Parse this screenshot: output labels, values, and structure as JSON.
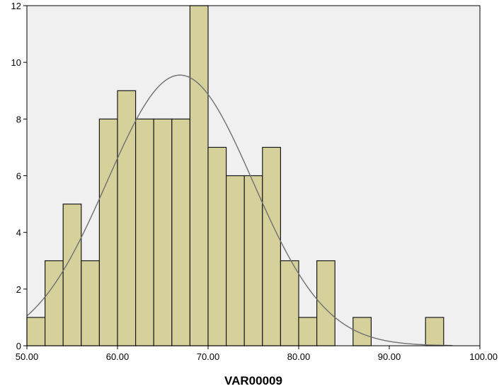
{
  "chart_data": {
    "type": "bar",
    "subtype": "histogram",
    "title": "",
    "xlabel": "VAR00009",
    "ylabel": "",
    "xlim": [
      50,
      100
    ],
    "ylim": [
      0,
      12
    ],
    "x_ticks": [
      50,
      60,
      70,
      80,
      90,
      100
    ],
    "x_tick_labels": [
      "50.00",
      "60.00",
      "70.00",
      "80.00",
      "90.00",
      "100.00"
    ],
    "y_ticks": [
      0,
      2,
      4,
      6,
      8,
      10,
      12
    ],
    "y_tick_labels": [
      "0",
      "2",
      "4",
      "6",
      "8",
      "10",
      "12"
    ],
    "bin_width": 2,
    "bins": [
      {
        "x0": 50,
        "x1": 52,
        "count": 1
      },
      {
        "x0": 52,
        "x1": 54,
        "count": 3
      },
      {
        "x0": 54,
        "x1": 56,
        "count": 5
      },
      {
        "x0": 56,
        "x1": 58,
        "count": 3
      },
      {
        "x0": 58,
        "x1": 60,
        "count": 8
      },
      {
        "x0": 60,
        "x1": 62,
        "count": 9
      },
      {
        "x0": 62,
        "x1": 64,
        "count": 8
      },
      {
        "x0": 64,
        "x1": 66,
        "count": 8
      },
      {
        "x0": 66,
        "x1": 68,
        "count": 8
      },
      {
        "x0": 68,
        "x1": 70,
        "count": 12
      },
      {
        "x0": 70,
        "x1": 72,
        "count": 7
      },
      {
        "x0": 72,
        "x1": 74,
        "count": 6
      },
      {
        "x0": 74,
        "x1": 76,
        "count": 6
      },
      {
        "x0": 76,
        "x1": 78,
        "count": 7
      },
      {
        "x0": 78,
        "x1": 80,
        "count": 3
      },
      {
        "x0": 80,
        "x1": 82,
        "count": 1
      },
      {
        "x0": 82,
        "x1": 84,
        "count": 3
      },
      {
        "x0": 86,
        "x1": 88,
        "count": 1
      },
      {
        "x0": 94,
        "x1": 96,
        "count": 1
      }
    ],
    "normal_curve": {
      "mean": 66.9,
      "sd": 8.05,
      "peak": 9.55,
      "x_range": [
        50,
        97
      ]
    },
    "grid": false,
    "colors": {
      "bar_fill": "#d6d19b",
      "bar_stroke": "#1a1a1a",
      "plot_background": "#f0f0f0",
      "curve": "#707070"
    }
  }
}
